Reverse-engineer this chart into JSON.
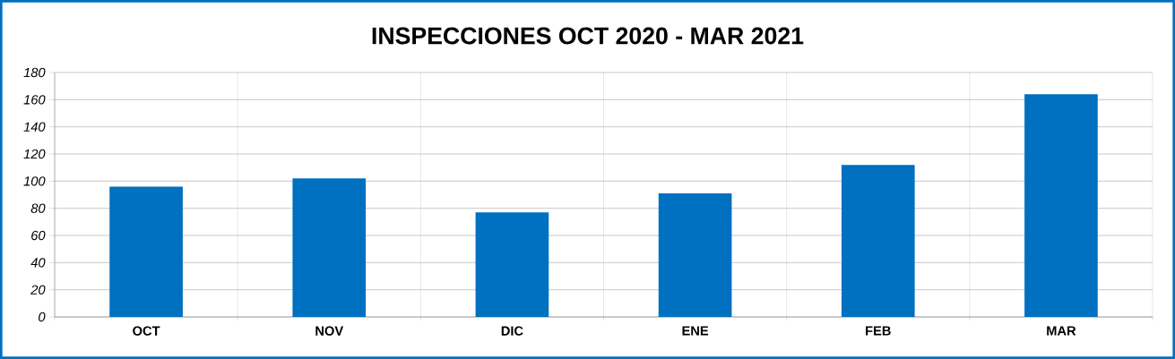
{
  "chart_data": {
    "type": "bar",
    "title": "INSPECCIONES OCT 2020 - MAR 2021",
    "categories": [
      "OCT",
      "NOV",
      "DIC",
      "ENE",
      "FEB",
      "MAR"
    ],
    "values": [
      96,
      102,
      77,
      91,
      112,
      164
    ],
    "color": "#0070c0",
    "ylim": [
      0,
      180
    ],
    "yticks": [
      0,
      20,
      40,
      60,
      80,
      100,
      120,
      140,
      160,
      180
    ],
    "grid": true
  }
}
